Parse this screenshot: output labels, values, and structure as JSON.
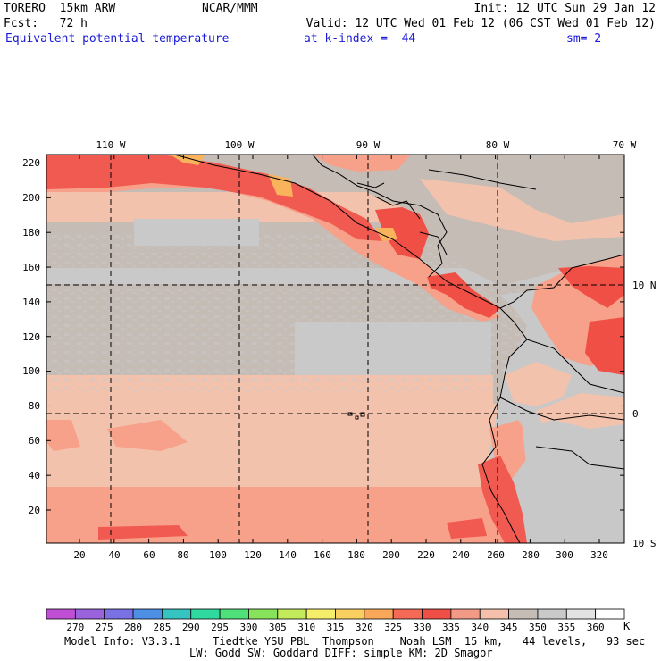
{
  "header": {
    "model": "TORERO  15km ARW",
    "org": "NCAR/MMM",
    "init": "Init: 12 UTC Sun 29 Jan 12",
    "fcst": "Fcst:   72 h",
    "valid": "Valid: 12 UTC Wed 01 Feb 12 (06 CST Wed 01 Feb 12)",
    "field": "Equivalent potential temperature",
    "kindex": "at k-index =  44",
    "smoothing": "sm= 2"
  },
  "map": {
    "top_lon_labels": [
      "110 W",
      "100 W",
      "90 W",
      "80 W",
      "70 W"
    ],
    "right_lat_labels": [
      "10 N",
      "0",
      "10 S"
    ],
    "left_y_ticks": [
      "20",
      "40",
      "60",
      "80",
      "100",
      "120",
      "140",
      "160",
      "180",
      "200",
      "220"
    ],
    "bottom_x_ticks": [
      "20",
      "40",
      "60",
      "80",
      "100",
      "120",
      "140",
      "160",
      "180",
      "200",
      "220",
      "240",
      "260",
      "280",
      "300",
      "320"
    ],
    "colors": {
      "ocean_north": "#c6bcb6",
      "ocean_cool": "#c9c9c9",
      "ocean_south": "#f3c2ad",
      "warm": "#f7a08a",
      "hot": "#f15a50",
      "hotter": "#ef4f45",
      "land_grey": "#c8c8c8",
      "highland": "#f9b35c"
    }
  },
  "colorbar": {
    "labels": [
      "270",
      "275",
      "280",
      "285",
      "290",
      "295",
      "300",
      "305",
      "310",
      "315",
      "320",
      "325",
      "330",
      "335",
      "340",
      "345",
      "350",
      "355",
      "360"
    ],
    "unit": "K",
    "colors": [
      "#c14fd6",
      "#9a62dc",
      "#7a72e4",
      "#4e8fe6",
      "#35c4c0",
      "#30d9a0",
      "#4fe07a",
      "#86e35a",
      "#c3ea5a",
      "#f4ee6a",
      "#f9cf60",
      "#f9a85a",
      "#f46a56",
      "#ef4f45",
      "#f29a86",
      "#f4c0ac",
      "#c6bcb6",
      "#c9c9c9",
      "#e3e3e3",
      "#ffffff"
    ]
  },
  "footer": {
    "line1": "Model Info: V3.3.1     Tiedtke YSU PBL  Thompson    Noah LSM  15 km,   44 levels,   93 sec",
    "line2": "LW: Godd SW: Goddard DIFF: simple KM: 2D Smagor"
  }
}
